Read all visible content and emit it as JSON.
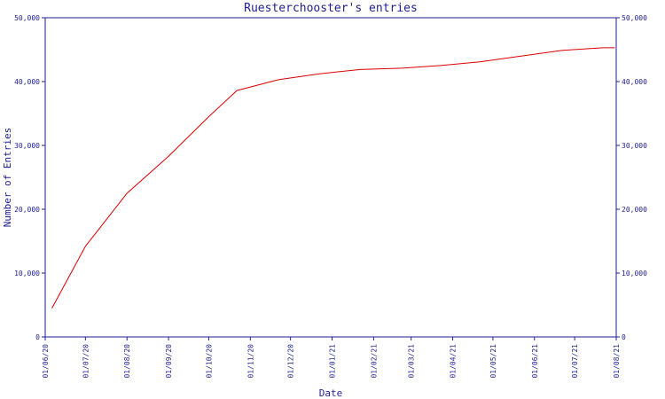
{
  "chart_data": {
    "type": "line",
    "title": "Ruesterchooster's entries",
    "xlabel": "Date",
    "ylabel": "Number of Entries",
    "ylim": [
      0,
      50000
    ],
    "yticks": [
      0,
      10000,
      20000,
      30000,
      40000,
      50000
    ],
    "ytick_labels": [
      "0",
      "10,000",
      "20,000",
      "30,000",
      "40,000",
      "50,000"
    ],
    "xlim": [
      "2020-06-01",
      "2021-08-01"
    ],
    "xticks": [
      "2020-06-01",
      "2020-07-01",
      "2020-08-01",
      "2020-09-01",
      "2020-10-01",
      "2020-11-01",
      "2020-12-01",
      "2021-01-01",
      "2021-02-01",
      "2021-03-01",
      "2021-04-01",
      "2021-05-01",
      "2021-06-01",
      "2021-07-01",
      "2021-08-01"
    ],
    "xtick_labels": [
      "01/06/20",
      "01/07/20",
      "01/08/20",
      "01/09/20",
      "01/10/20",
      "01/11/20",
      "01/12/20",
      "01/01/21",
      "01/02/21",
      "01/03/21",
      "01/04/21",
      "01/05/21",
      "01/06/21",
      "01/07/21",
      "01/08/21"
    ],
    "grid": false,
    "secondary_y_axis": true,
    "series": [
      {
        "color": "#dd0000",
        "x": [
          "2020-06-06",
          "2020-07-01",
          "2020-08-01",
          "2020-09-01",
          "2020-10-01",
          "2020-10-22",
          "2020-11-22",
          "2020-12-22",
          "2021-01-22",
          "2021-02-22",
          "2021-03-22",
          "2021-04-22",
          "2021-05-22",
          "2021-06-22",
          "2021-07-22",
          "2021-07-31"
        ],
        "y": [
          4500,
          14200,
          22500,
          28300,
          34500,
          38600,
          40300,
          41200,
          41900,
          42100,
          42500,
          43100,
          44000,
          44900,
          45300,
          45300
        ]
      }
    ]
  },
  "colors": {
    "axis": "#1f1f8f",
    "line": "#dd0000"
  }
}
